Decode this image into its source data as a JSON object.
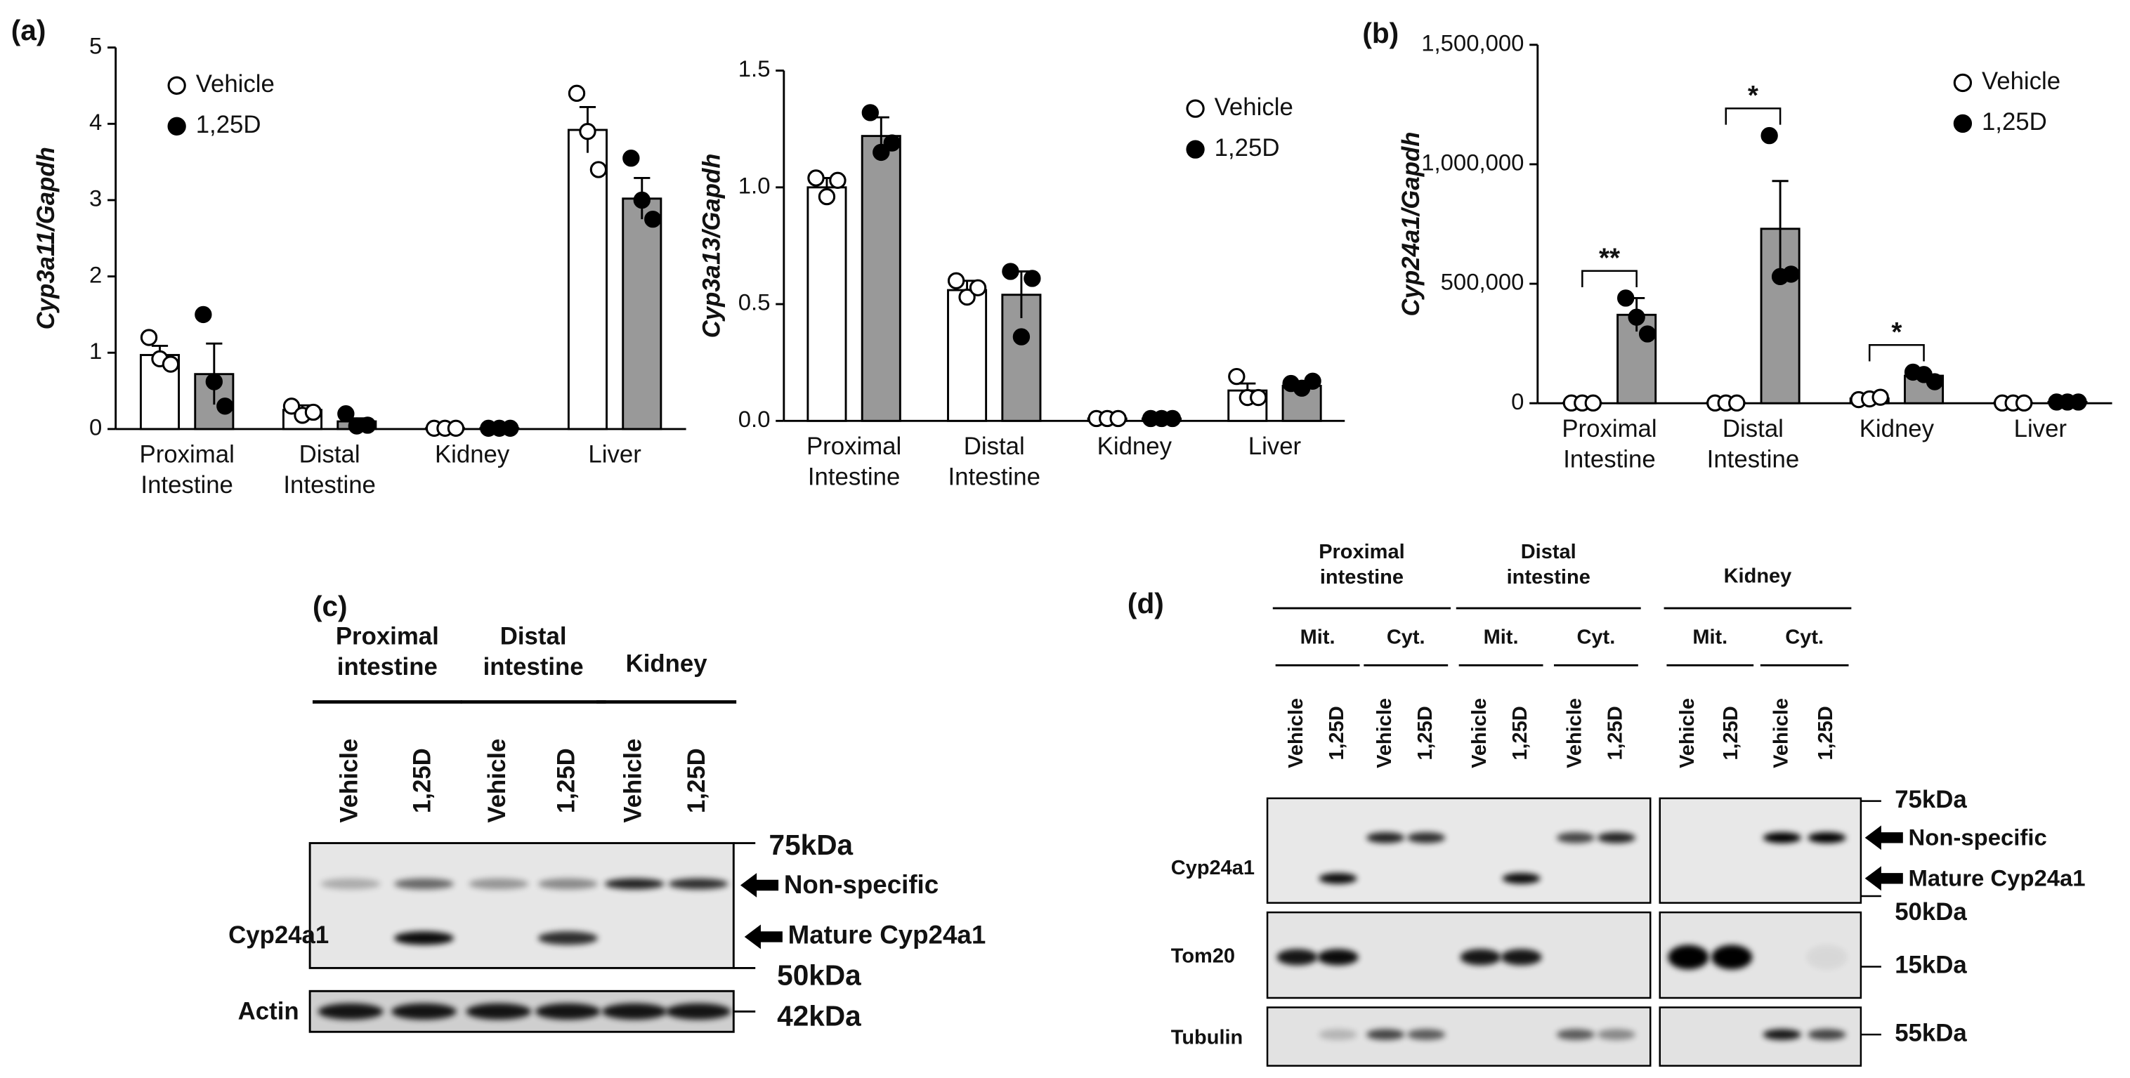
{
  "panels": [
    "(a)",
    "(b)",
    "(c)",
    "(d)"
  ],
  "chart_data": [
    {
      "type": "bar",
      "y_label": "Cyp3a11/Gapdh",
      "categories": [
        "Proximal Intestine",
        "Distal Intestine",
        "Kidney",
        "Liver"
      ],
      "series": [
        {
          "name": "Vehicle",
          "color": "#ffffff",
          "marker": "open",
          "values": [
            0.97,
            0.25,
            0.01,
            3.92
          ],
          "errors": [
            0.12,
            0.06,
            0,
            0.3
          ],
          "points": [
            [
              1.2,
              0.92,
              0.85
            ],
            [
              0.3,
              0.18,
              0.22
            ],
            [
              0.01,
              0.01,
              0.01
            ],
            [
              4.4,
              3.9,
              3.4
            ]
          ]
        },
        {
          "name": "1,25D",
          "color": "#999999",
          "marker": "filled",
          "values": [
            0.72,
            0.1,
            0.01,
            3.02
          ],
          "errors": [
            0.4,
            0.04,
            0,
            0.27
          ],
          "points": [
            [
              1.5,
              0.62,
              0.3
            ],
            [
              0.2,
              0.04,
              0.05
            ],
            [
              0.01,
              0.01,
              0.01
            ],
            [
              3.55,
              3.0,
              2.75
            ]
          ]
        }
      ],
      "ylim": [
        0,
        5
      ],
      "yticks": [
        0,
        1,
        2,
        3,
        4,
        5
      ],
      "legend": "upper left"
    },
    {
      "type": "bar",
      "y_label": "Cyp3a13/Gapdh",
      "categories": [
        "Proximal Intestine",
        "Distal Intestine",
        "Kidney",
        "Liver"
      ],
      "series": [
        {
          "name": "Vehicle",
          "color": "#ffffff",
          "marker": "open",
          "values": [
            1.0,
            0.56,
            0.01,
            0.13
          ],
          "errors": [
            0.04,
            0.04,
            0,
            0.03
          ],
          "points": [
            [
              1.04,
              0.96,
              1.03
            ],
            [
              0.6,
              0.53,
              0.57
            ],
            [
              0.01,
              0.01,
              0.01
            ],
            [
              0.19,
              0.1,
              0.1
            ]
          ]
        },
        {
          "name": "1,25D",
          "color": "#999999",
          "marker": "filled",
          "values": [
            1.22,
            0.54,
            0.01,
            0.15
          ],
          "errors": [
            0.08,
            0.1,
            0,
            0.01
          ],
          "points": [
            [
              1.32,
              1.15,
              1.19
            ],
            [
              0.64,
              0.36,
              0.61
            ],
            [
              0.01,
              0.01,
              0.01
            ],
            [
              0.16,
              0.14,
              0.17
            ]
          ]
        }
      ],
      "ylim": [
        0,
        1.5
      ],
      "yticks": [
        {
          "value": 0,
          "label": "0.0"
        },
        0.5,
        {
          "value": 1,
          "label": "1.0"
        },
        1.5
      ],
      "legend": "upper right"
    },
    {
      "type": "bar",
      "y_label": "Cyp24a1/Gapdh",
      "categories": [
        "Proximal Intestine",
        "Distal Intestine",
        "Kidney",
        "Liver"
      ],
      "series": [
        {
          "name": "Vehicle",
          "color": "#ffffff",
          "marker": "open",
          "values": [
            1000,
            1000,
            20000,
            1000
          ],
          "errors": [
            0,
            0,
            5000,
            0
          ],
          "points": [
            [
              1000,
              1000,
              1000
            ],
            [
              1000,
              1000,
              1000
            ],
            [
              15000,
              18000,
              25000
            ],
            [
              1000,
              1000,
              1000
            ]
          ]
        },
        {
          "name": "1,25D",
          "color": "#999999",
          "marker": "filled",
          "values": [
            370000,
            730000,
            115000,
            5000
          ],
          "errors": [
            70000,
            200000,
            15000,
            0
          ],
          "points": [
            [
              440000,
              360000,
              290000
            ],
            [
              1120000,
              530000,
              540000
            ],
            [
              130000,
              120000,
              90000
            ],
            [
              5000,
              5000,
              5000
            ]
          ]
        }
      ],
      "significance": [
        "**",
        "*",
        "*",
        null
      ],
      "ylim": [
        0,
        1500000
      ],
      "yticks": [
        0,
        {
          "value": 500000,
          "label": "500,000"
        },
        {
          "value": 1000000,
          "label": "1,000,000"
        },
        {
          "value": 1500000,
          "label": "1,500,000"
        }
      ],
      "legend": "upper right"
    }
  ],
  "blot_c": {
    "groups": [
      {
        "label": "Proximal intestine",
        "lanes": [
          "Vehicle",
          "1,25D"
        ]
      },
      {
        "label": "Distal intestine",
        "lanes": [
          "Vehicle",
          "1,25D"
        ]
      },
      {
        "label": "Kidney",
        "lanes": [
          "Vehicle",
          "1,25D"
        ]
      }
    ],
    "rows": [
      "Cyp24a1",
      "Actin"
    ],
    "markers": [
      "75kDa",
      "50kDa",
      "42kDa"
    ],
    "arrows": [
      "Non-specific",
      "Mature Cyp24a1"
    ]
  },
  "blot_d": {
    "groups": [
      {
        "label": "Proximal intestine",
        "fractions": [
          {
            "label": "Mit.",
            "lanes": [
              "Vehicle",
              "1,25D"
            ]
          },
          {
            "label": "Cyt.",
            "lanes": [
              "Vehicle",
              "1,25D"
            ]
          }
        ]
      },
      {
        "label": "Distal intestine",
        "fractions": [
          {
            "label": "Mit.",
            "lanes": [
              "Vehicle",
              "1,25D"
            ]
          },
          {
            "label": "Cyt.",
            "lanes": [
              "Vehicle",
              "1,25D"
            ]
          }
        ]
      },
      {
        "label": "Kidney",
        "fractions": [
          {
            "label": "Mit.",
            "lanes": [
              "Vehicle",
              "1,25D"
            ]
          },
          {
            "label": "Cyt.",
            "lanes": [
              "Vehicle",
              "1,25D"
            ]
          }
        ]
      }
    ],
    "rows": [
      "Cyp24a1",
      "Tom20",
      "Tubulin"
    ],
    "markers": [
      "75kDa",
      "50kDa",
      "15kDa",
      "55kDa"
    ],
    "arrows": [
      "Non-specific",
      "Mature Cyp24a1"
    ]
  }
}
